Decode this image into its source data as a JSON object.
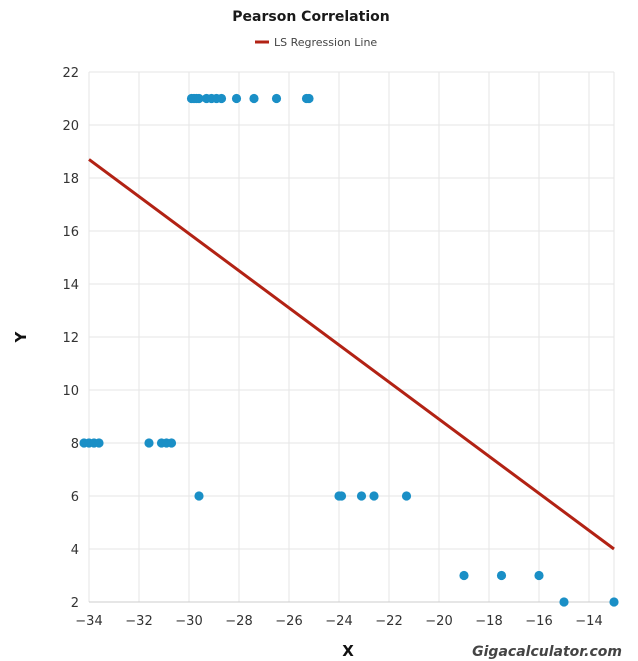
{
  "chart_data": {
    "type": "scatter",
    "title": "Pearson Correlation",
    "xlabel": "X",
    "ylabel": "Y",
    "xlim": [
      -34,
      -13
    ],
    "ylim": [
      2,
      22
    ],
    "x_ticks": [
      -34,
      -32,
      -30,
      -28,
      -26,
      -24,
      -22,
      -20,
      -18,
      -16,
      -14
    ],
    "y_ticks": [
      2,
      4,
      6,
      8,
      10,
      12,
      14,
      16,
      18,
      20,
      22
    ],
    "grid": true,
    "legend_position": "top-center",
    "legend": [
      {
        "label": "LS Regression Line",
        "color": "#b22214"
      }
    ],
    "point_color": "#1a8fc6",
    "points": [
      {
        "x": -29.9,
        "y": 21
      },
      {
        "x": -29.8,
        "y": 21
      },
      {
        "x": -29.7,
        "y": 21
      },
      {
        "x": -29.6,
        "y": 21
      },
      {
        "x": -29.3,
        "y": 21
      },
      {
        "x": -29.1,
        "y": 21
      },
      {
        "x": -28.9,
        "y": 21
      },
      {
        "x": -28.7,
        "y": 21
      },
      {
        "x": -28.1,
        "y": 21
      },
      {
        "x": -27.4,
        "y": 21
      },
      {
        "x": -26.5,
        "y": 21
      },
      {
        "x": -25.3,
        "y": 21
      },
      {
        "x": -25.2,
        "y": 21
      },
      {
        "x": -34.2,
        "y": 8
      },
      {
        "x": -34.0,
        "y": 8
      },
      {
        "x": -33.8,
        "y": 8
      },
      {
        "x": -33.6,
        "y": 8
      },
      {
        "x": -31.6,
        "y": 8
      },
      {
        "x": -31.1,
        "y": 8
      },
      {
        "x": -30.9,
        "y": 8
      },
      {
        "x": -30.7,
        "y": 8
      },
      {
        "x": -29.6,
        "y": 6
      },
      {
        "x": -24.0,
        "y": 6
      },
      {
        "x": -23.9,
        "y": 6
      },
      {
        "x": -23.1,
        "y": 6
      },
      {
        "x": -22.6,
        "y": 6
      },
      {
        "x": -21.3,
        "y": 6
      },
      {
        "x": -19.0,
        "y": 3
      },
      {
        "x": -17.5,
        "y": 3
      },
      {
        "x": -16.0,
        "y": 3
      },
      {
        "x": -15.0,
        "y": 2
      },
      {
        "x": -13.0,
        "y": 2
      }
    ],
    "regression_line": {
      "label": "LS Regression Line",
      "x1": -34,
      "y1": 18.7,
      "x2": -13,
      "y2": 4.0
    },
    "watermark": "Gigacalculator.com"
  }
}
